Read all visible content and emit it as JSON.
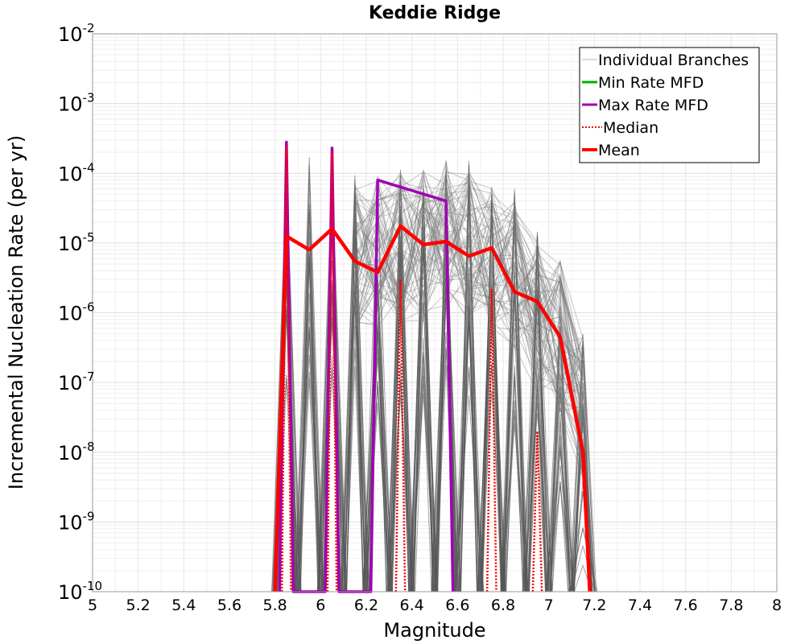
{
  "chart_data": {
    "type": "line",
    "title": "Keddie Ridge",
    "xlabel": "Magnitude",
    "ylabel": "Incremental Nucleation Rate (per yr)",
    "xlim": [
      5,
      8
    ],
    "ylim": [
      1e-10,
      0.01
    ],
    "y_scale": "log",
    "grid": true,
    "legend_position": "top-right",
    "x_ticks": [
      "5",
      "5.2",
      "5.4",
      "5.6",
      "5.8",
      "6",
      "6.2",
      "6.4",
      "6.6",
      "6.8",
      "7",
      "7.2",
      "7.4",
      "7.6",
      "7.8",
      "8"
    ],
    "y_ticks": [
      {
        "base": "10",
        "exp": "-10"
      },
      {
        "base": "10",
        "exp": "-9"
      },
      {
        "base": "10",
        "exp": "-8"
      },
      {
        "base": "10",
        "exp": "-7"
      },
      {
        "base": "10",
        "exp": "-6"
      },
      {
        "base": "10",
        "exp": "-5"
      },
      {
        "base": "10",
        "exp": "-4"
      },
      {
        "base": "10",
        "exp": "-3"
      },
      {
        "base": "10",
        "exp": "-2"
      }
    ],
    "legend": [
      {
        "label": "Individual Branches",
        "color": "#b4b4b4",
        "style": "thin"
      },
      {
        "label": "Min Rate MFD",
        "color": "#00b000",
        "style": "solid"
      },
      {
        "label": "Max Rate MFD",
        "color": "#a000b4",
        "style": "solid"
      },
      {
        "label": "Median",
        "color": "#ff0000",
        "style": "dotted"
      },
      {
        "label": "Mean",
        "color": "#ff0000",
        "style": "thick"
      }
    ],
    "series": [
      {
        "name": "Mean",
        "color": "#ff0000",
        "x": [
          5.8,
          5.85,
          5.95,
          6.05,
          6.15,
          6.25,
          6.35,
          6.45,
          6.55,
          6.65,
          6.75,
          6.85,
          6.95,
          7.05,
          7.15,
          7.18
        ],
        "y": [
          1e-10,
          1.25e-05,
          8e-06,
          1.6e-05,
          5.5e-06,
          3.8e-06,
          1.75e-05,
          9.5e-06,
          1.05e-05,
          6.5e-06,
          8.5e-06,
          2e-06,
          1.45e-06,
          4.5e-07,
          1e-08,
          1e-10
        ]
      },
      {
        "name": "Max Rate MFD",
        "color": "#a000b4",
        "x": [
          5.82,
          5.85,
          5.88,
          6.02,
          6.05,
          6.08,
          6.22,
          6.25,
          6.55,
          6.58
        ],
        "y": [
          1e-10,
          0.00028,
          1e-10,
          1e-10,
          0.00023,
          1e-10,
          1e-10,
          8e-05,
          4e-05,
          1e-10
        ]
      },
      {
        "name": "Median",
        "color": "#ff0000",
        "peaks": [
          {
            "x": 5.85,
            "y": 0.00025
          },
          {
            "x": 6.05,
            "y": 0.0002
          },
          {
            "x": 6.35,
            "y": 3e-06
          },
          {
            "x": 6.75,
            "y": 2.2e-06
          },
          {
            "x": 6.95,
            "y": 2e-08
          }
        ]
      },
      {
        "name": "Individual Branches",
        "color": "#555555",
        "peak_envelope": [
          {
            "x": 5.85,
            "y": 0.00025
          },
          {
            "x": 5.95,
            "y": 0.00025
          },
          {
            "x": 6.05,
            "y": 0.00022
          },
          {
            "x": 6.15,
            "y": 0.0001
          },
          {
            "x": 6.25,
            "y": 0.00013
          },
          {
            "x": 6.35,
            "y": 0.00015
          },
          {
            "x": 6.45,
            "y": 0.00016
          },
          {
            "x": 6.55,
            "y": 0.00023
          },
          {
            "x": 6.65,
            "y": 0.00015
          },
          {
            "x": 6.75,
            "y": 0.0001
          },
          {
            "x": 6.85,
            "y": 6e-05
          },
          {
            "x": 6.95,
            "y": 1.5e-05
          },
          {
            "x": 7.05,
            "y": 8e-06
          },
          {
            "x": 7.15,
            "y": 7e-07
          }
        ]
      }
    ]
  }
}
